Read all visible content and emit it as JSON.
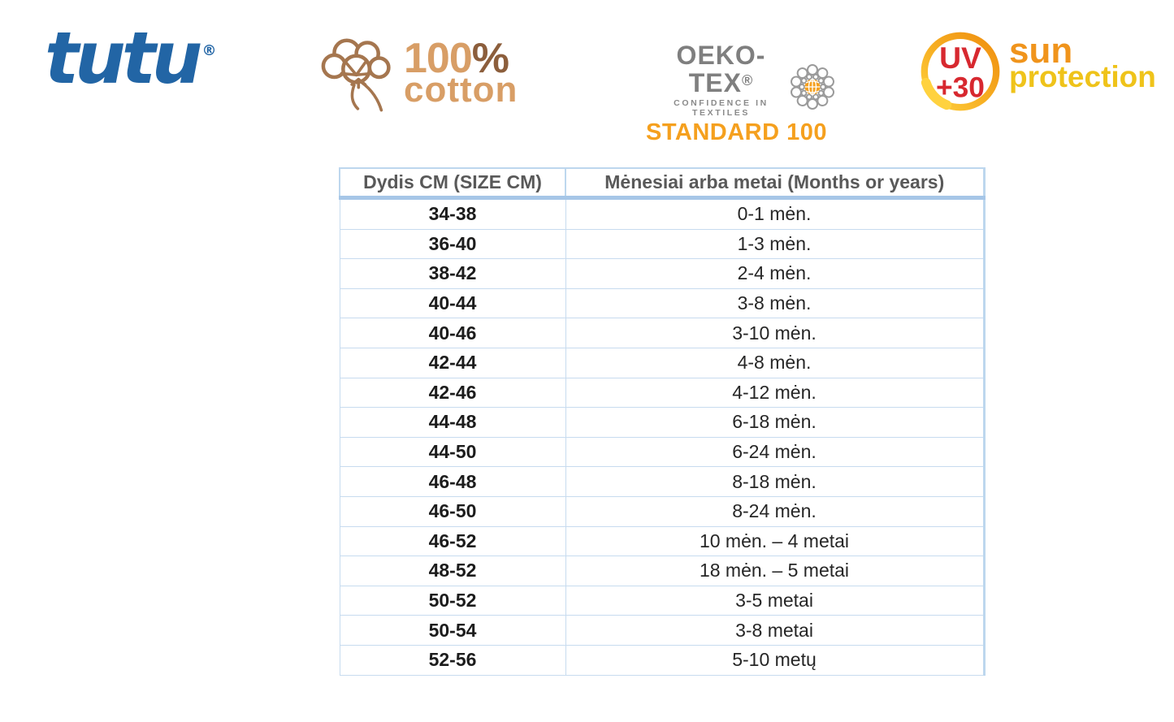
{
  "logos": {
    "tutu": {
      "text": "tutu",
      "registered": "®",
      "color": "#2265A5"
    },
    "cotton": {
      "percent_number": "100",
      "percent_sign": "%",
      "word": "cotton",
      "tan_color": "#D89E66",
      "brown_color": "#8C5E3C"
    },
    "oekotex": {
      "brand": "OEKO-TEX",
      "registered": "®",
      "tagline": "CONFIDENCE IN TEXTILES",
      "standard": "STANDARD 100",
      "gray_color": "#7F7F7F",
      "orange_color": "#F5A01E"
    },
    "uv": {
      "badge_top": "UV",
      "badge_bottom": "+30",
      "sun": "sun",
      "protection": "protection",
      "red_color": "#D7282F",
      "orange_color": "#F0941C",
      "gold_color": "#EFC31A"
    }
  },
  "table": {
    "headers": [
      "Dydis CM (SIZE CM)",
      "Mėnesiai arba metai (Months or years)"
    ],
    "border_color": "#BDD7EE",
    "rows": [
      [
        "34-38",
        "0-1 mėn."
      ],
      [
        "36-40",
        "1-3 mėn."
      ],
      [
        "38-42",
        "2-4 mėn."
      ],
      [
        "40-44",
        "3-8 mėn."
      ],
      [
        "40-46",
        "3-10 mėn."
      ],
      [
        "42-44",
        "4-8 mėn."
      ],
      [
        "42-46",
        "4-12 mėn."
      ],
      [
        "44-48",
        "6-18 mėn."
      ],
      [
        "44-50",
        "6-24 mėn."
      ],
      [
        "46-48",
        "8-18 mėn."
      ],
      [
        "46-50",
        "8-24 mėn."
      ],
      [
        "46-52",
        "10 mėn. – 4 metai"
      ],
      [
        "48-52",
        "18 mėn. – 5 metai"
      ],
      [
        "50-52",
        "3-5 metai"
      ],
      [
        "50-54",
        "3-8 metai"
      ],
      [
        "52-56",
        "5-10 metų"
      ]
    ]
  }
}
